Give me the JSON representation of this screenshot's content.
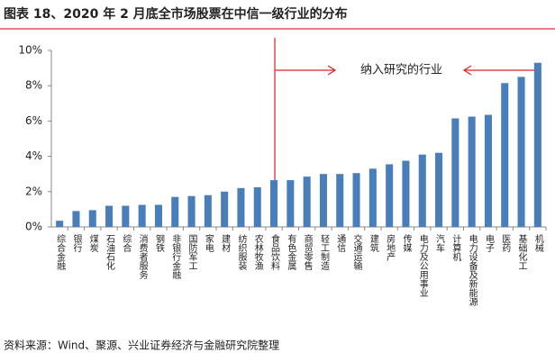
{
  "chart_data": {
    "type": "bar",
    "title": "图表 18、2020 年 2 月底全市场股票在中信一级行业的分布",
    "annotation": "纳入研究的行业",
    "source": "资料来源：Wind、聚源、兴业证券经济与金融研究院整理",
    "categories": [
      "综合金融",
      "银行",
      "煤炭",
      "石油石化",
      "综合",
      "消费者服务",
      "钢铁",
      "非银行金融",
      "国防军工",
      "家电",
      "建材",
      "纺织服装",
      "农林牧渔",
      "食品饮料",
      "有色金属",
      "商贸零售",
      "轻工制造",
      "通信",
      "交通运输",
      "建筑",
      "房地产",
      "传媒",
      "电力及公用事业",
      "汽车",
      "计算机",
      "电力设备及新能源",
      "电子",
      "医药",
      "基础化工",
      "机械"
    ],
    "values": [
      0.35,
      0.9,
      0.95,
      1.2,
      1.2,
      1.25,
      1.25,
      1.7,
      1.75,
      1.8,
      2.0,
      2.2,
      2.25,
      2.65,
      2.65,
      2.85,
      3.0,
      3.0,
      3.05,
      3.3,
      3.55,
      3.75,
      4.1,
      4.2,
      6.15,
      6.25,
      6.35,
      8.15,
      8.5,
      9.3
    ],
    "color": "#4a7ebb",
    "ylim": [
      0,
      10
    ],
    "yticks": [
      {
        "value": 0,
        "label": "0%"
      },
      {
        "value": 2,
        "label": "2%"
      },
      {
        "value": 4,
        "label": "4%"
      },
      {
        "value": 6,
        "label": "6%"
      },
      {
        "value": 8,
        "label": "8%"
      },
      {
        "value": 10,
        "label": "10%"
      }
    ],
    "grid": false
  }
}
